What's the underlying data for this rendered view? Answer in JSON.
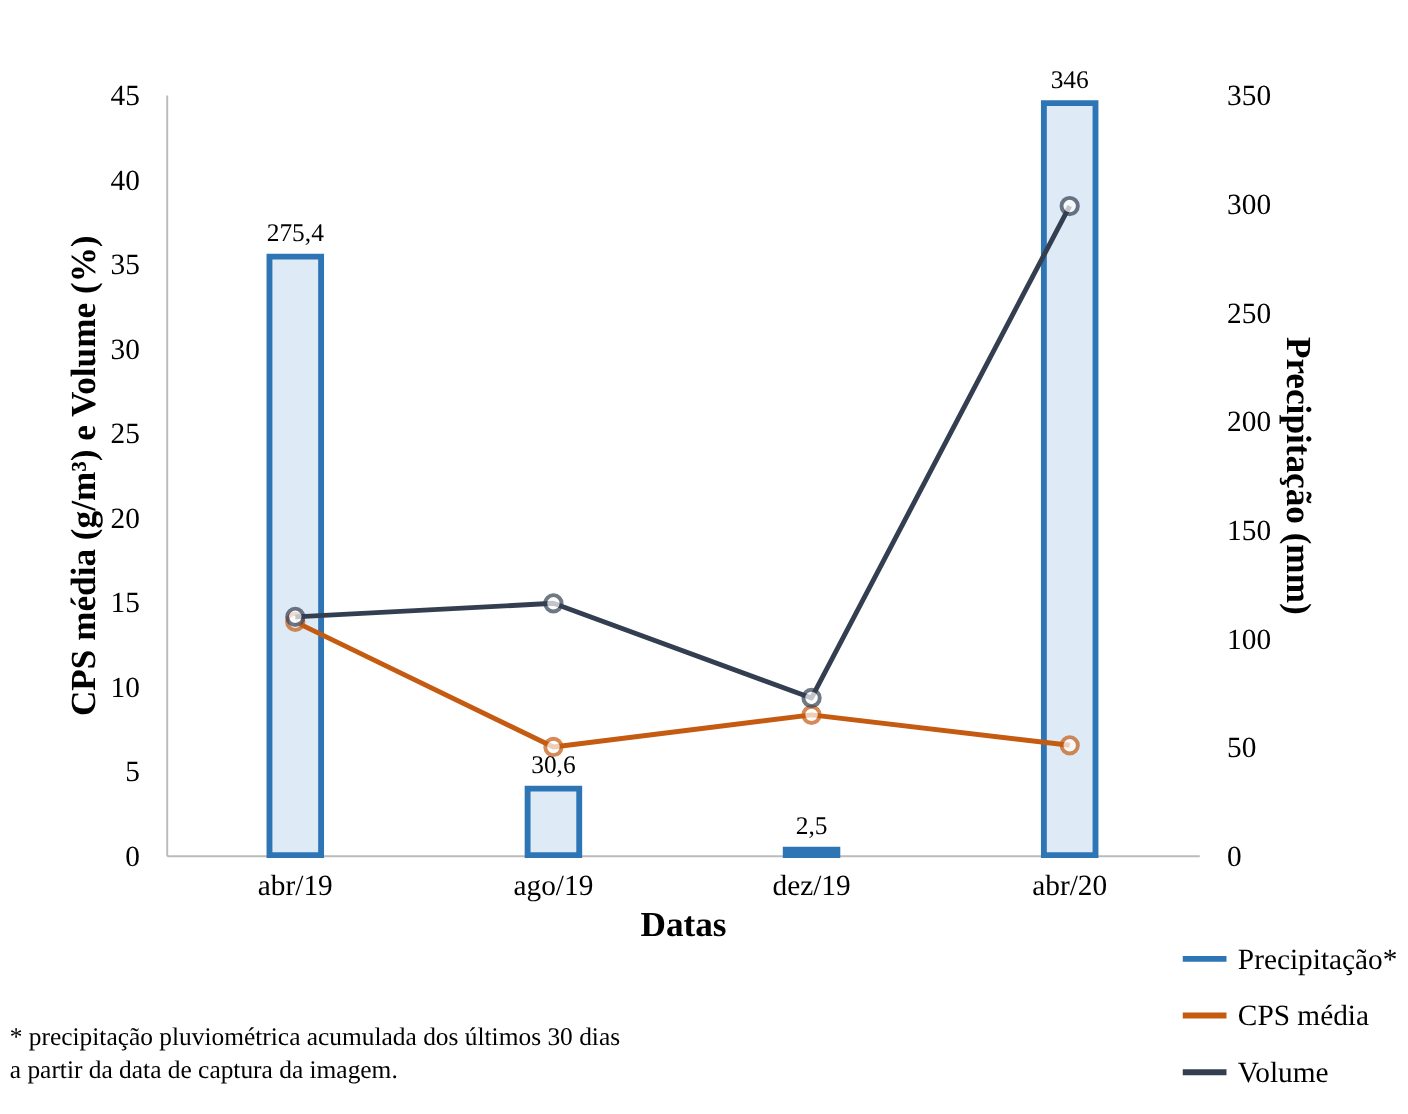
{
  "chart_data": {
    "type": "bar",
    "categories": [
      "abr/19",
      "ago/19",
      "dez/19",
      "abr/20"
    ],
    "xlabel": "Datas",
    "ylabel": "CPS média (g/m³) e Volume (%)",
    "y2label": "Precipitação (mm)",
    "ylim": [
      0,
      45
    ],
    "yticks": [
      0,
      5,
      10,
      15,
      20,
      25,
      30,
      35,
      40,
      45
    ],
    "y2lim": [
      0,
      350
    ],
    "y2ticks": [
      0,
      50,
      100,
      150,
      200,
      250,
      300,
      350
    ],
    "series": [
      {
        "name": "Precipitação*",
        "axis": "y2",
        "color": "#2e75b6",
        "values": [
          275.4,
          30.6,
          2.5,
          346
        ],
        "value_labels": [
          "275,4",
          "30,6",
          "2,5",
          "346"
        ]
      },
      {
        "name": "CPS média",
        "type": "line",
        "color": "#c55a11",
        "values": [
          13.8,
          6.4,
          8.3,
          6.5
        ]
      },
      {
        "name": "Volume",
        "type": "line",
        "color": "#333f50",
        "values": [
          14.1,
          14.9,
          9.3,
          38.4
        ]
      }
    ],
    "marker": "circle",
    "line_style": "solid",
    "grid": false,
    "legend": "bottom right",
    "annotations": [
      "* precipitação pluviométrica acumulada dos últimos 30 dias\na partir da data de captura da imagem."
    ]
  }
}
